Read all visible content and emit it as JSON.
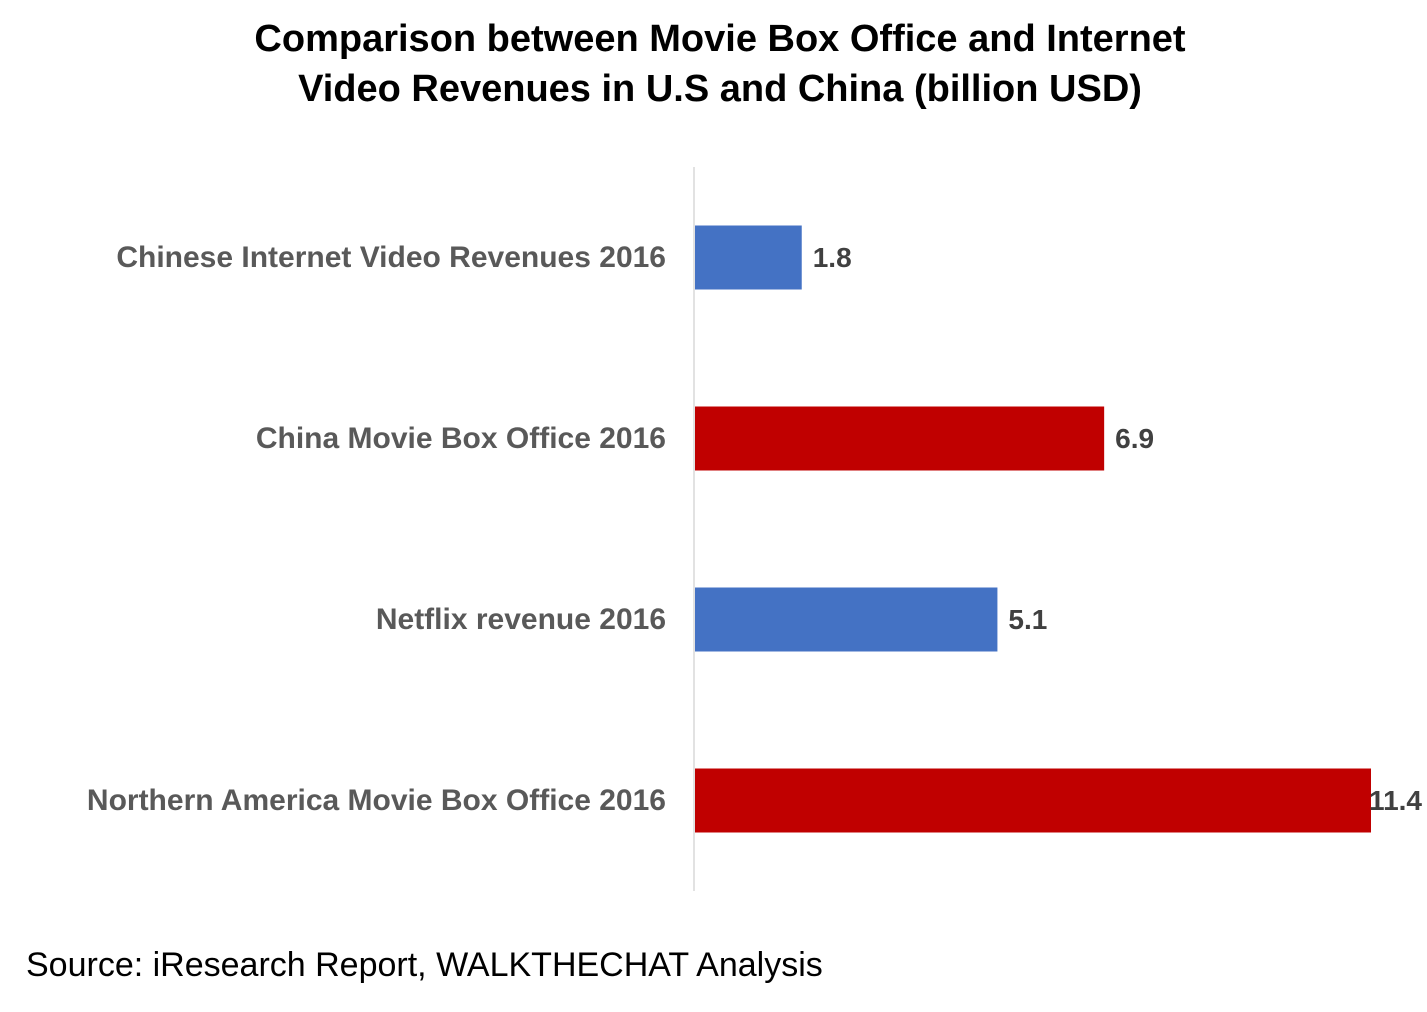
{
  "chart_data": {
    "type": "bar",
    "orientation": "horizontal",
    "title_lines": [
      "Comparison between Movie Box Office and Internet",
      "Video Revenues in U.S and China (billion USD)"
    ],
    "categories": [
      "Chinese Internet Video Revenues 2016",
      "China Movie Box Office 2016",
      "Netflix revenue 2016",
      "Northern America Movie Box Office 2016"
    ],
    "values": [
      1.8,
      6.9,
      5.1,
      11.4
    ],
    "value_labels": [
      "1.8",
      "6.9",
      "5.1",
      "11.4"
    ],
    "bar_colors": [
      "#4472C4",
      "#C00000",
      "#4472C4",
      "#C00000"
    ],
    "xlim": [
      0,
      11.4
    ],
    "xlabel": "",
    "ylabel": "",
    "grid": false,
    "legend": "none"
  },
  "footer": {
    "source": "Source: iResearch Report, WALKTHECHAT Analysis"
  },
  "colors": {
    "axis_line": "#D9D9D9",
    "category_text": "#595959",
    "value_text": "#404040"
  }
}
